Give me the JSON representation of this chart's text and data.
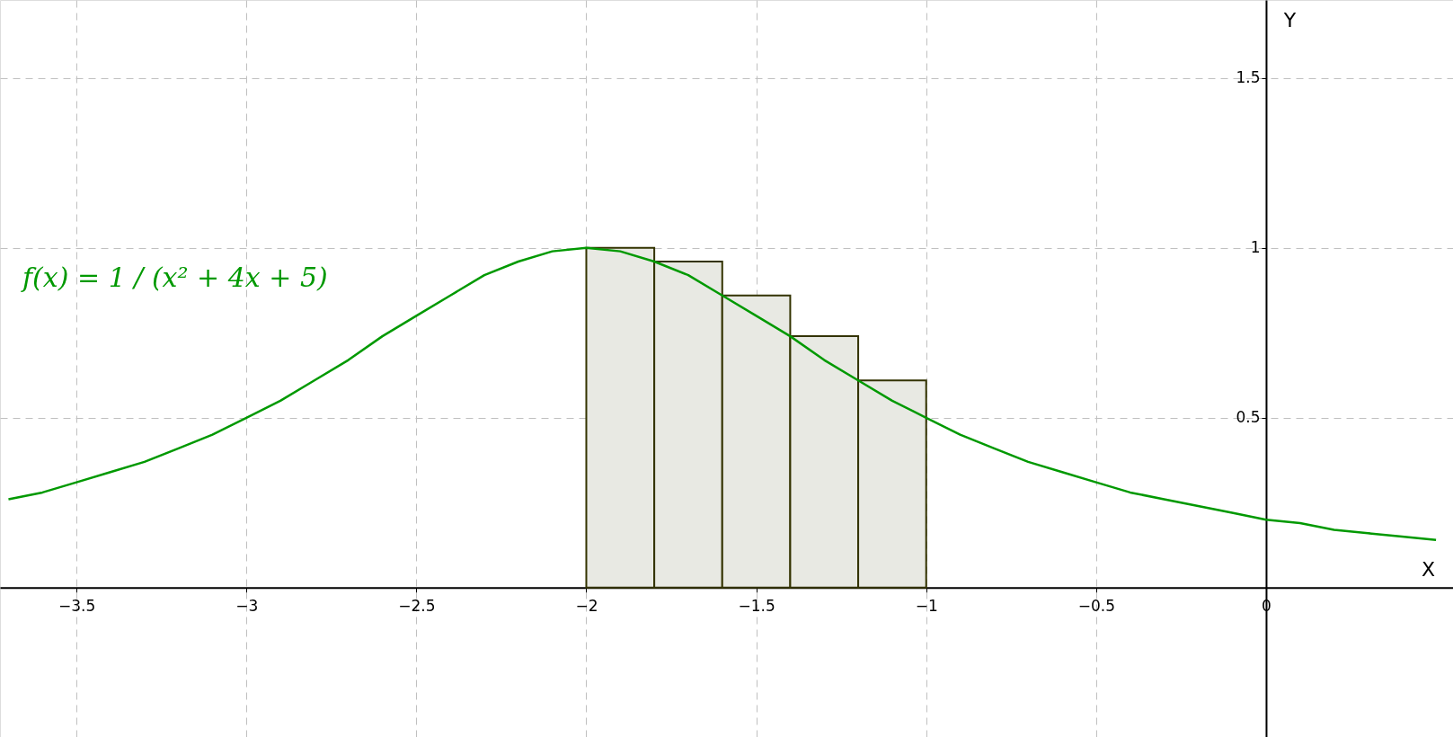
{
  "chart_data": {
    "type": "histogram",
    "xlabel": "X",
    "ylabel": "Y",
    "bins": [
      -2,
      -1.8,
      -1.6,
      -1.4,
      -1.2,
      -1
    ],
    "values": [
      1,
      0.96,
      0.86,
      0.74,
      0.61
    ],
    "color": "#e8e9e3",
    "series": [
      {
        "type": "line",
        "color": "#009900",
        "x": [
          -3.7,
          -3.6,
          -3.5,
          -3.4,
          -3.3,
          -3.2,
          -3.1,
          -3.0,
          -2.9,
          -2.8,
          -2.7,
          -2.6,
          -2.5,
          -2.4,
          -2.3,
          -2.2,
          -2.1,
          -2.0,
          -1.9,
          -1.8,
          -1.7,
          -1.6,
          -1.5,
          -1.4,
          -1.3,
          -1.2,
          -1.1,
          -1.0,
          -0.9,
          -0.8,
          -0.7,
          -0.6,
          -0.5,
          -0.4,
          -0.3,
          -0.2,
          -0.1,
          0.0,
          0.1,
          0.2,
          0.3,
          0.4,
          0.5
        ],
        "values": [
          0.26,
          0.28,
          0.31,
          0.34,
          0.37,
          0.41,
          0.45,
          0.5,
          0.55,
          0.61,
          0.67,
          0.74,
          0.8,
          0.86,
          0.92,
          0.96,
          0.99,
          1,
          0.99,
          0.96,
          0.92,
          0.86,
          0.8,
          0.74,
          0.67,
          0.61,
          0.55,
          0.5,
          0.45,
          0.41,
          0.37,
          0.34,
          0.31,
          0.28,
          0.26,
          0.24,
          0.22,
          0.2,
          0.19,
          0.17,
          0.16,
          0.15,
          0.14
        ]
      }
    ],
    "annotations": [
      "f(x) = 1 / (x² + 4x + 5)"
    ],
    "xlim": [
      -3.725,
      0.55
    ],
    "ylim": [
      -0.44,
      1.73
    ],
    "xticks": [
      -3.5,
      -3,
      -2.5,
      -2,
      -1.5,
      -1,
      -0.5,
      0
    ],
    "yticks": [
      0.5,
      1,
      1.5
    ],
    "grid": true
  }
}
